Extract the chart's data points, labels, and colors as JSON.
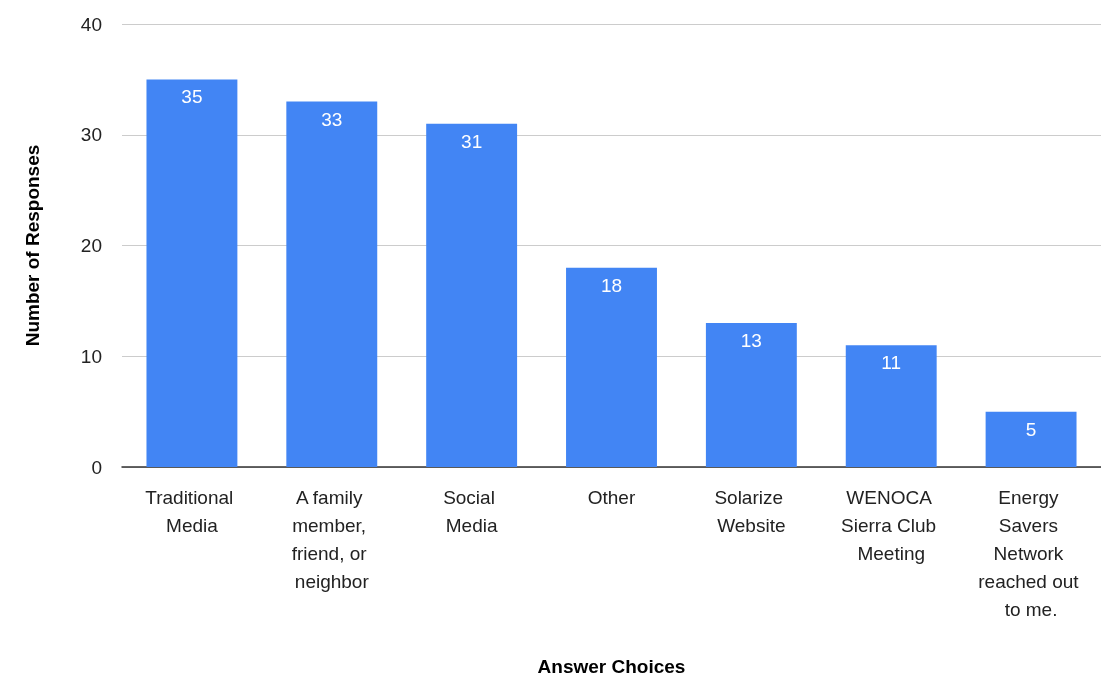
{
  "chart_data": {
    "type": "bar",
    "xlabel": "Answer Choices",
    "ylabel": "Number of Responses",
    "categories": [
      "Traditional Media",
      "A family member, friend, or neighbor",
      "Social Media",
      "Other",
      "Solarize Website",
      "WENOCA Sierra Club Meeting",
      "Energy Savers Network reached out to me."
    ],
    "values": [
      35,
      33,
      31,
      18,
      13,
      11,
      5
    ],
    "color": "#4285f4",
    "ylim": [
      0,
      40
    ],
    "yticks": [
      0,
      10,
      20,
      30,
      40
    ],
    "grid": "y",
    "data_labels": true
  }
}
